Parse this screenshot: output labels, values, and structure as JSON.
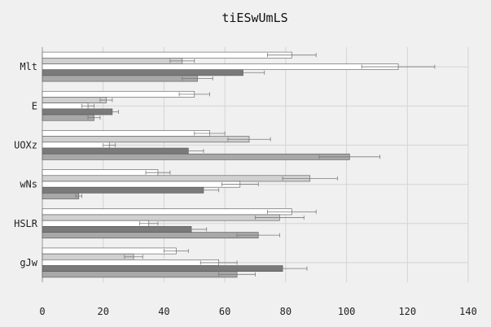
{
  "chart_data": {
    "type": "bar",
    "orientation": "horizontal",
    "title": "tiESwUmLS",
    "xlabel": "",
    "ylabel": "",
    "xlim": [
      0,
      140
    ],
    "xticks": [
      0,
      20,
      40,
      60,
      80,
      100,
      120,
      140
    ],
    "grid": true,
    "legend": "none",
    "categories": [
      "Mlt",
      "E",
      "UOXz",
      "wNs",
      "HSLR",
      "gJw"
    ],
    "series": [
      {
        "color": "#ffffff",
        "values": [
          82,
          50,
          55,
          38,
          82,
          44
        ],
        "errors": [
          8,
          5,
          5,
          4,
          8,
          4
        ]
      },
      {
        "color": "#d0d0d0",
        "values": [
          46,
          21,
          68,
          88,
          78,
          30
        ],
        "errors": [
          4,
          2,
          7,
          9,
          8,
          3
        ]
      },
      {
        "color": "#ffffff",
        "values": [
          117,
          15,
          22,
          65,
          35,
          58
        ],
        "errors": [
          12,
          2,
          2,
          6,
          3,
          6
        ]
      },
      {
        "color": "#7a7a7a",
        "values": [
          66,
          23,
          48,
          53,
          49,
          79
        ],
        "errors": [
          7,
          2,
          5,
          5,
          5,
          8
        ]
      },
      {
        "color": "#a8a8a8",
        "values": [
          51,
          17,
          101,
          12,
          71,
          64
        ],
        "errors": [
          5,
          2,
          10,
          1,
          7,
          6
        ]
      }
    ]
  }
}
